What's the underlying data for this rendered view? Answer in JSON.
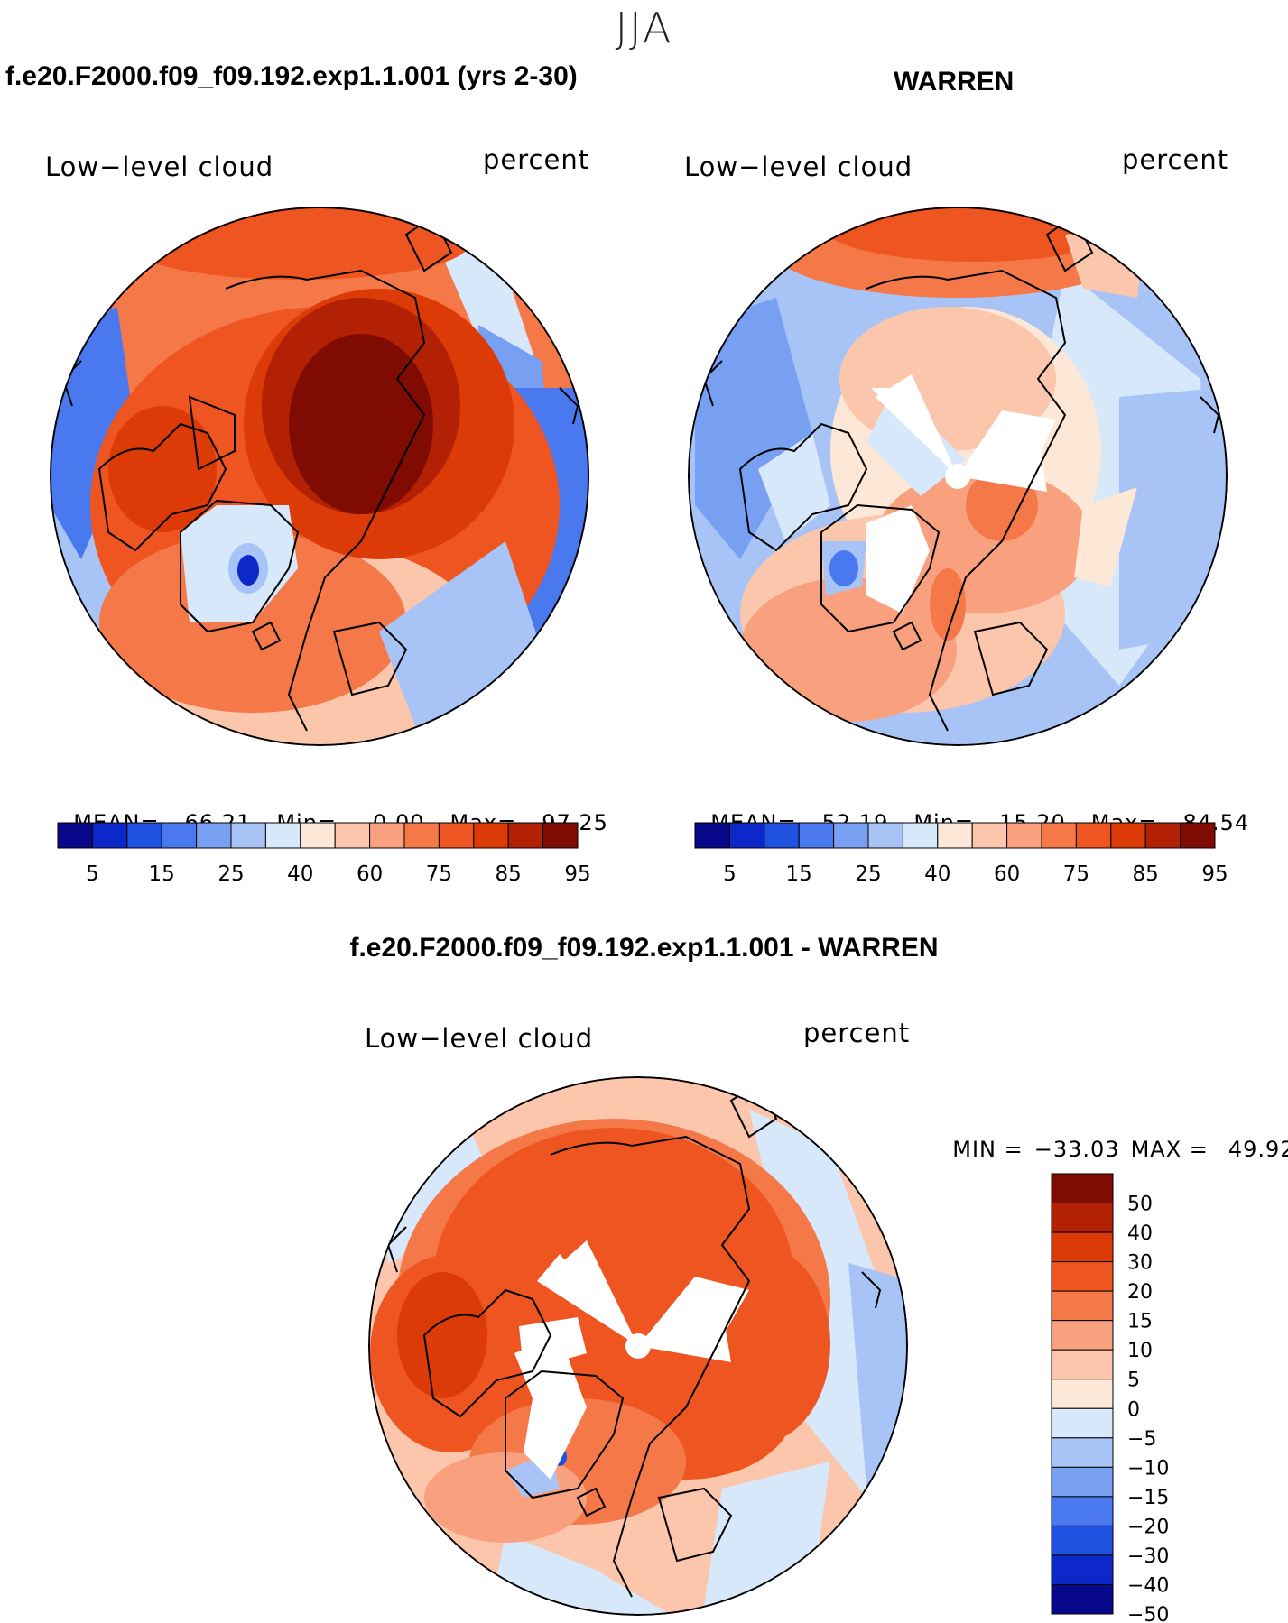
{
  "season": "JJA",
  "panels": [
    {
      "case_title": "f.e20.F2000.f09_f09.192.exp1.1.001 (yrs 2-30)",
      "variable": "Low−level cloud",
      "units": "percent",
      "stats": {
        "mean_label": "MEAN=",
        "mean": "66.21",
        "min_label": "Min=",
        "min": "0.00",
        "max_label": "Max=",
        "max": "97.25"
      },
      "colorbar_ticks": [
        "5",
        "15",
        "25",
        "40",
        "60",
        "75",
        "85",
        "95"
      ]
    },
    {
      "case_title": "WARREN",
      "variable": "Low−level cloud",
      "units": "percent",
      "stats": {
        "mean_label": "MEAN=",
        "mean": "52.19",
        "min_label": "Min=",
        "min": "15.20",
        "max_label": "Max=",
        "max": "84.54"
      },
      "colorbar_ticks": [
        "5",
        "15",
        "25",
        "40",
        "60",
        "75",
        "85",
        "95"
      ]
    }
  ],
  "difference": {
    "title": "f.e20.F2000.f09_f09.192.exp1.1.001 - WARREN",
    "variable": "Low−level cloud",
    "units": "percent",
    "minmax": {
      "min_label": "MIN =",
      "min": "−33.03",
      "max_label": "MAX =",
      "max": "49.92"
    },
    "colorbar_ticks": [
      "50",
      "40",
      "30",
      "20",
      "15",
      "10",
      "5",
      "0",
      "−5",
      "−10",
      "−15",
      "−20",
      "−30",
      "−40",
      "−50"
    ]
  },
  "colors": {
    "scale": [
      "#08088a",
      "#0c28c8",
      "#2050e0",
      "#4a78ee",
      "#78a0f2",
      "#a8c4f6",
      "#d6e8fa",
      "#fde7d6",
      "#fcc6ac",
      "#f9a07e",
      "#f47848",
      "#ee5520",
      "#dc3a06",
      "#b22104",
      "#7f0b02"
    ],
    "diff_scale": [
      "#7f0b02",
      "#b22104",
      "#dc3a06",
      "#ee5520",
      "#f47848",
      "#f9a07e",
      "#fcc6ac",
      "#fde7d6",
      "#d6e8fa",
      "#a8c4f6",
      "#78a0f2",
      "#4a78ee",
      "#2050e0",
      "#0c28c8",
      "#08088a"
    ],
    "missing": "#ffffff",
    "coast": "#000000"
  }
}
